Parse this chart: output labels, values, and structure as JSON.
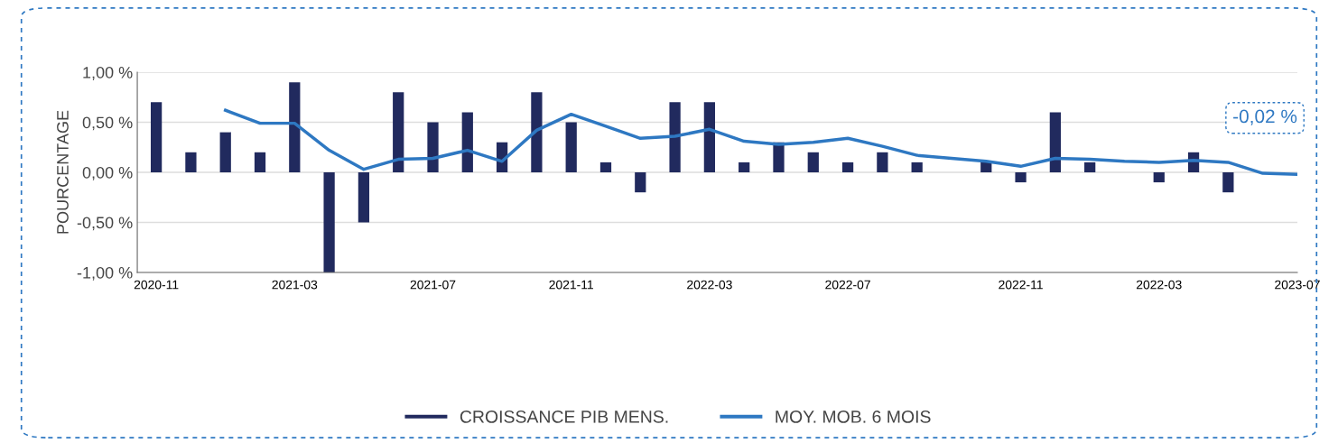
{
  "chart_data": {
    "type": "bar",
    "ylabel": "POURCENTAGE",
    "categories": [
      "2020-11",
      null,
      null,
      null,
      "2021-03",
      null,
      null,
      null,
      "2021-07",
      null,
      null,
      null,
      "2021-11",
      null,
      null,
      null,
      "2022-03",
      null,
      null,
      null,
      "2022-07",
      null,
      null,
      null,
      null,
      "2022-11",
      null,
      null,
      null,
      "2022-03",
      null,
      null,
      null,
      "2023-07"
    ],
    "series": [
      {
        "name": "CROISSANCE PIB MENS.",
        "color": "#212a5e",
        "values": [
          0.7,
          0.2,
          0.4,
          0.2,
          0.9,
          -1.0,
          -0.5,
          0.8,
          0.5,
          0.6,
          0.3,
          0.8,
          0.5,
          0.1,
          -0.2,
          0.7,
          0.7,
          0.1,
          0.3,
          0.2,
          0.1,
          0.2,
          0.1,
          0,
          0.1,
          -0.1,
          0.6,
          0.1,
          0,
          -0.1,
          0.2,
          -0.2,
          null,
          null
        ]
      },
      {
        "name": "MOY. MOB. 6 MOIS",
        "type": "line",
        "color": "#2e78c2",
        "values": [
          null,
          null,
          0.62,
          0.49,
          0.49,
          0.22,
          0.03,
          0.13,
          0.14,
          0.22,
          0.11,
          0.42,
          0.58,
          0.46,
          0.34,
          0.36,
          0.43,
          0.31,
          0.28,
          0.3,
          0.34,
          0.26,
          0.17,
          0.14,
          0.11,
          0.06,
          0.14,
          0.13,
          0.11,
          0.1,
          0.12,
          0.1,
          -0.01,
          -0.02
        ]
      }
    ],
    "ylim": [
      -1.0,
      1.0
    ],
    "yticks": [
      {
        "value": -1.0,
        "label": "-1,00 %"
      },
      {
        "value": -0.5,
        "label": "-0,50 %"
      },
      {
        "value": 0,
        "label": "0,00 %"
      },
      {
        "value": 0.5,
        "label": "0,50 %"
      },
      {
        "value": 1.0,
        "label": "1,00 %"
      }
    ],
    "grid": "y",
    "legend": "bottom",
    "annotations": [
      {
        "text": "-0,02 %",
        "x": "2023-07",
        "y": -0.02
      }
    ]
  }
}
